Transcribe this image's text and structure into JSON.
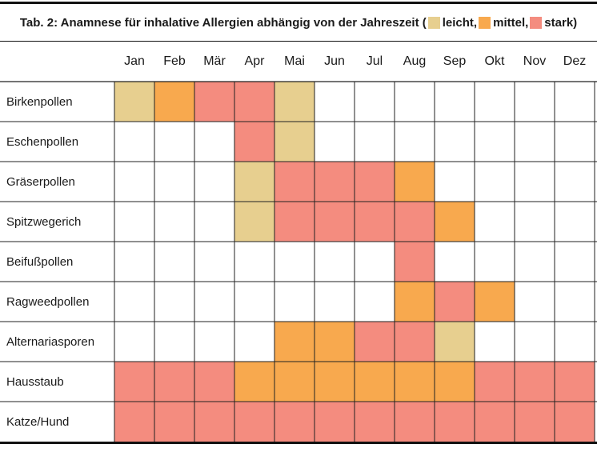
{
  "title": {
    "prefix": "Tab. 2: Anamnese für inhalative Allergien abhängig von der Jahreszeit (",
    "legend": [
      {
        "key": "leicht",
        "label": "leicht,",
        "color": "#e7cf8f"
      },
      {
        "key": "mittel",
        "label": "mittel,",
        "color": "#f8a94e"
      },
      {
        "key": "stark",
        "label": "stark)",
        "color": "#f48c7f"
      }
    ]
  },
  "colors": {
    "leicht": "#e7cf8f",
    "mittel": "#f8a94e",
    "stark": "#f48c7f",
    "none": "#ffffff",
    "grid": "#222222"
  },
  "months": [
    "Jan",
    "Feb",
    "Mär",
    "Apr",
    "Mai",
    "Jun",
    "Jul",
    "Aug",
    "Sep",
    "Okt",
    "Nov",
    "Dez"
  ],
  "rows": [
    {
      "label": "Birkenpollen",
      "levels": [
        "leicht",
        "mittel",
        "stark",
        "stark",
        "leicht",
        "",
        "",
        "",
        "",
        "",
        "",
        ""
      ]
    },
    {
      "label": "Eschenpollen",
      "levels": [
        "",
        "",
        "",
        "stark",
        "leicht",
        "",
        "",
        "",
        "",
        "",
        "",
        ""
      ]
    },
    {
      "label": "Gräserpollen",
      "levels": [
        "",
        "",
        "",
        "leicht",
        "stark",
        "stark",
        "stark",
        "mittel",
        "",
        "",
        "",
        ""
      ]
    },
    {
      "label": "Spitzwegerich",
      "levels": [
        "",
        "",
        "",
        "leicht",
        "stark",
        "stark",
        "stark",
        "stark",
        "mittel",
        "",
        "",
        ""
      ]
    },
    {
      "label": "Beifußpollen",
      "levels": [
        "",
        "",
        "",
        "",
        "",
        "",
        "",
        "stark",
        "",
        "",
        "",
        ""
      ]
    },
    {
      "label": "Ragweedpollen",
      "levels": [
        "",
        "",
        "",
        "",
        "",
        "",
        "",
        "mittel",
        "stark",
        "mittel",
        "",
        ""
      ]
    },
    {
      "label": "Alternariasporen",
      "levels": [
        "",
        "",
        "",
        "",
        "mittel",
        "mittel",
        "stark",
        "stark",
        "leicht",
        "",
        "",
        ""
      ]
    },
    {
      "label": "Hausstaub",
      "levels": [
        "stark",
        "stark",
        "stark",
        "mittel",
        "mittel",
        "mittel",
        "mittel",
        "mittel",
        "mittel",
        "stark",
        "stark",
        "stark"
      ]
    },
    {
      "label": "Katze/Hund",
      "levels": [
        "stark",
        "stark",
        "stark",
        "stark",
        "stark",
        "stark",
        "stark",
        "stark",
        "stark",
        "stark",
        "stark",
        "stark"
      ]
    }
  ]
}
